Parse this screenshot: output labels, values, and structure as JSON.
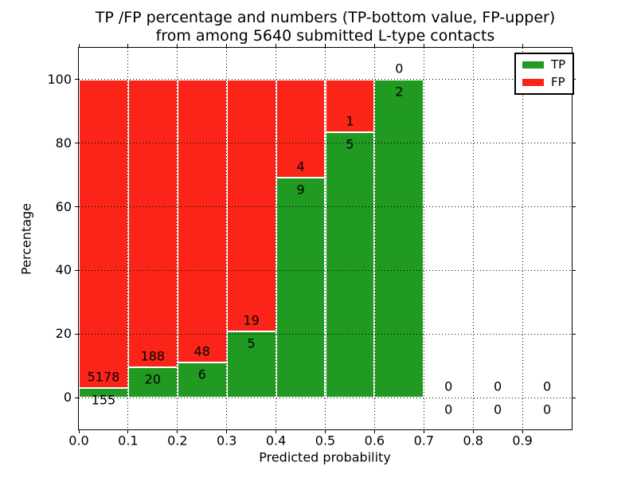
{
  "chart_data": {
    "type": "bar",
    "stacked": true,
    "title_line1": "TP /FP percentage and numbers (TP-bottom value, FP-upper)",
    "title_line2": "from among 5640 submitted L-type contacts",
    "xlabel": "Predicted probability",
    "ylabel": "Percentage",
    "xlim": [
      0.0,
      1.0
    ],
    "ylim": [
      -10,
      110
    ],
    "x_ticks": [
      "0.0",
      "0.1",
      "0.2",
      "0.3",
      "0.4",
      "0.5",
      "0.6",
      "0.7",
      "0.8",
      "0.9"
    ],
    "y_ticks": [
      0,
      20,
      40,
      60,
      80,
      100
    ],
    "bin_width": 0.1,
    "grid": "dotted",
    "legend_position": "upper right",
    "bins": [
      {
        "x0": 0.0,
        "tp": 155,
        "fp": 5178
      },
      {
        "x0": 0.1,
        "tp": 20,
        "fp": 188
      },
      {
        "x0": 0.2,
        "tp": 6,
        "fp": 48
      },
      {
        "x0": 0.3,
        "tp": 5,
        "fp": 19
      },
      {
        "x0": 0.4,
        "tp": 9,
        "fp": 4
      },
      {
        "x0": 0.5,
        "tp": 5,
        "fp": 1
      },
      {
        "x0": 0.6,
        "tp": 2,
        "fp": 0
      },
      {
        "x0": 0.7,
        "tp": 0,
        "fp": 0
      },
      {
        "x0": 0.8,
        "tp": 0,
        "fp": 0
      },
      {
        "x0": 0.9,
        "tp": 0,
        "fp": 0
      }
    ],
    "legend": [
      {
        "label": "TP",
        "color": "#219a21"
      },
      {
        "label": "FP",
        "color": "#fa2418"
      }
    ],
    "colors": {
      "tp": "#219a21",
      "fp": "#fa2418",
      "grid": "#000000",
      "bar_edge": "#ffffff",
      "frame": "#000000"
    }
  }
}
